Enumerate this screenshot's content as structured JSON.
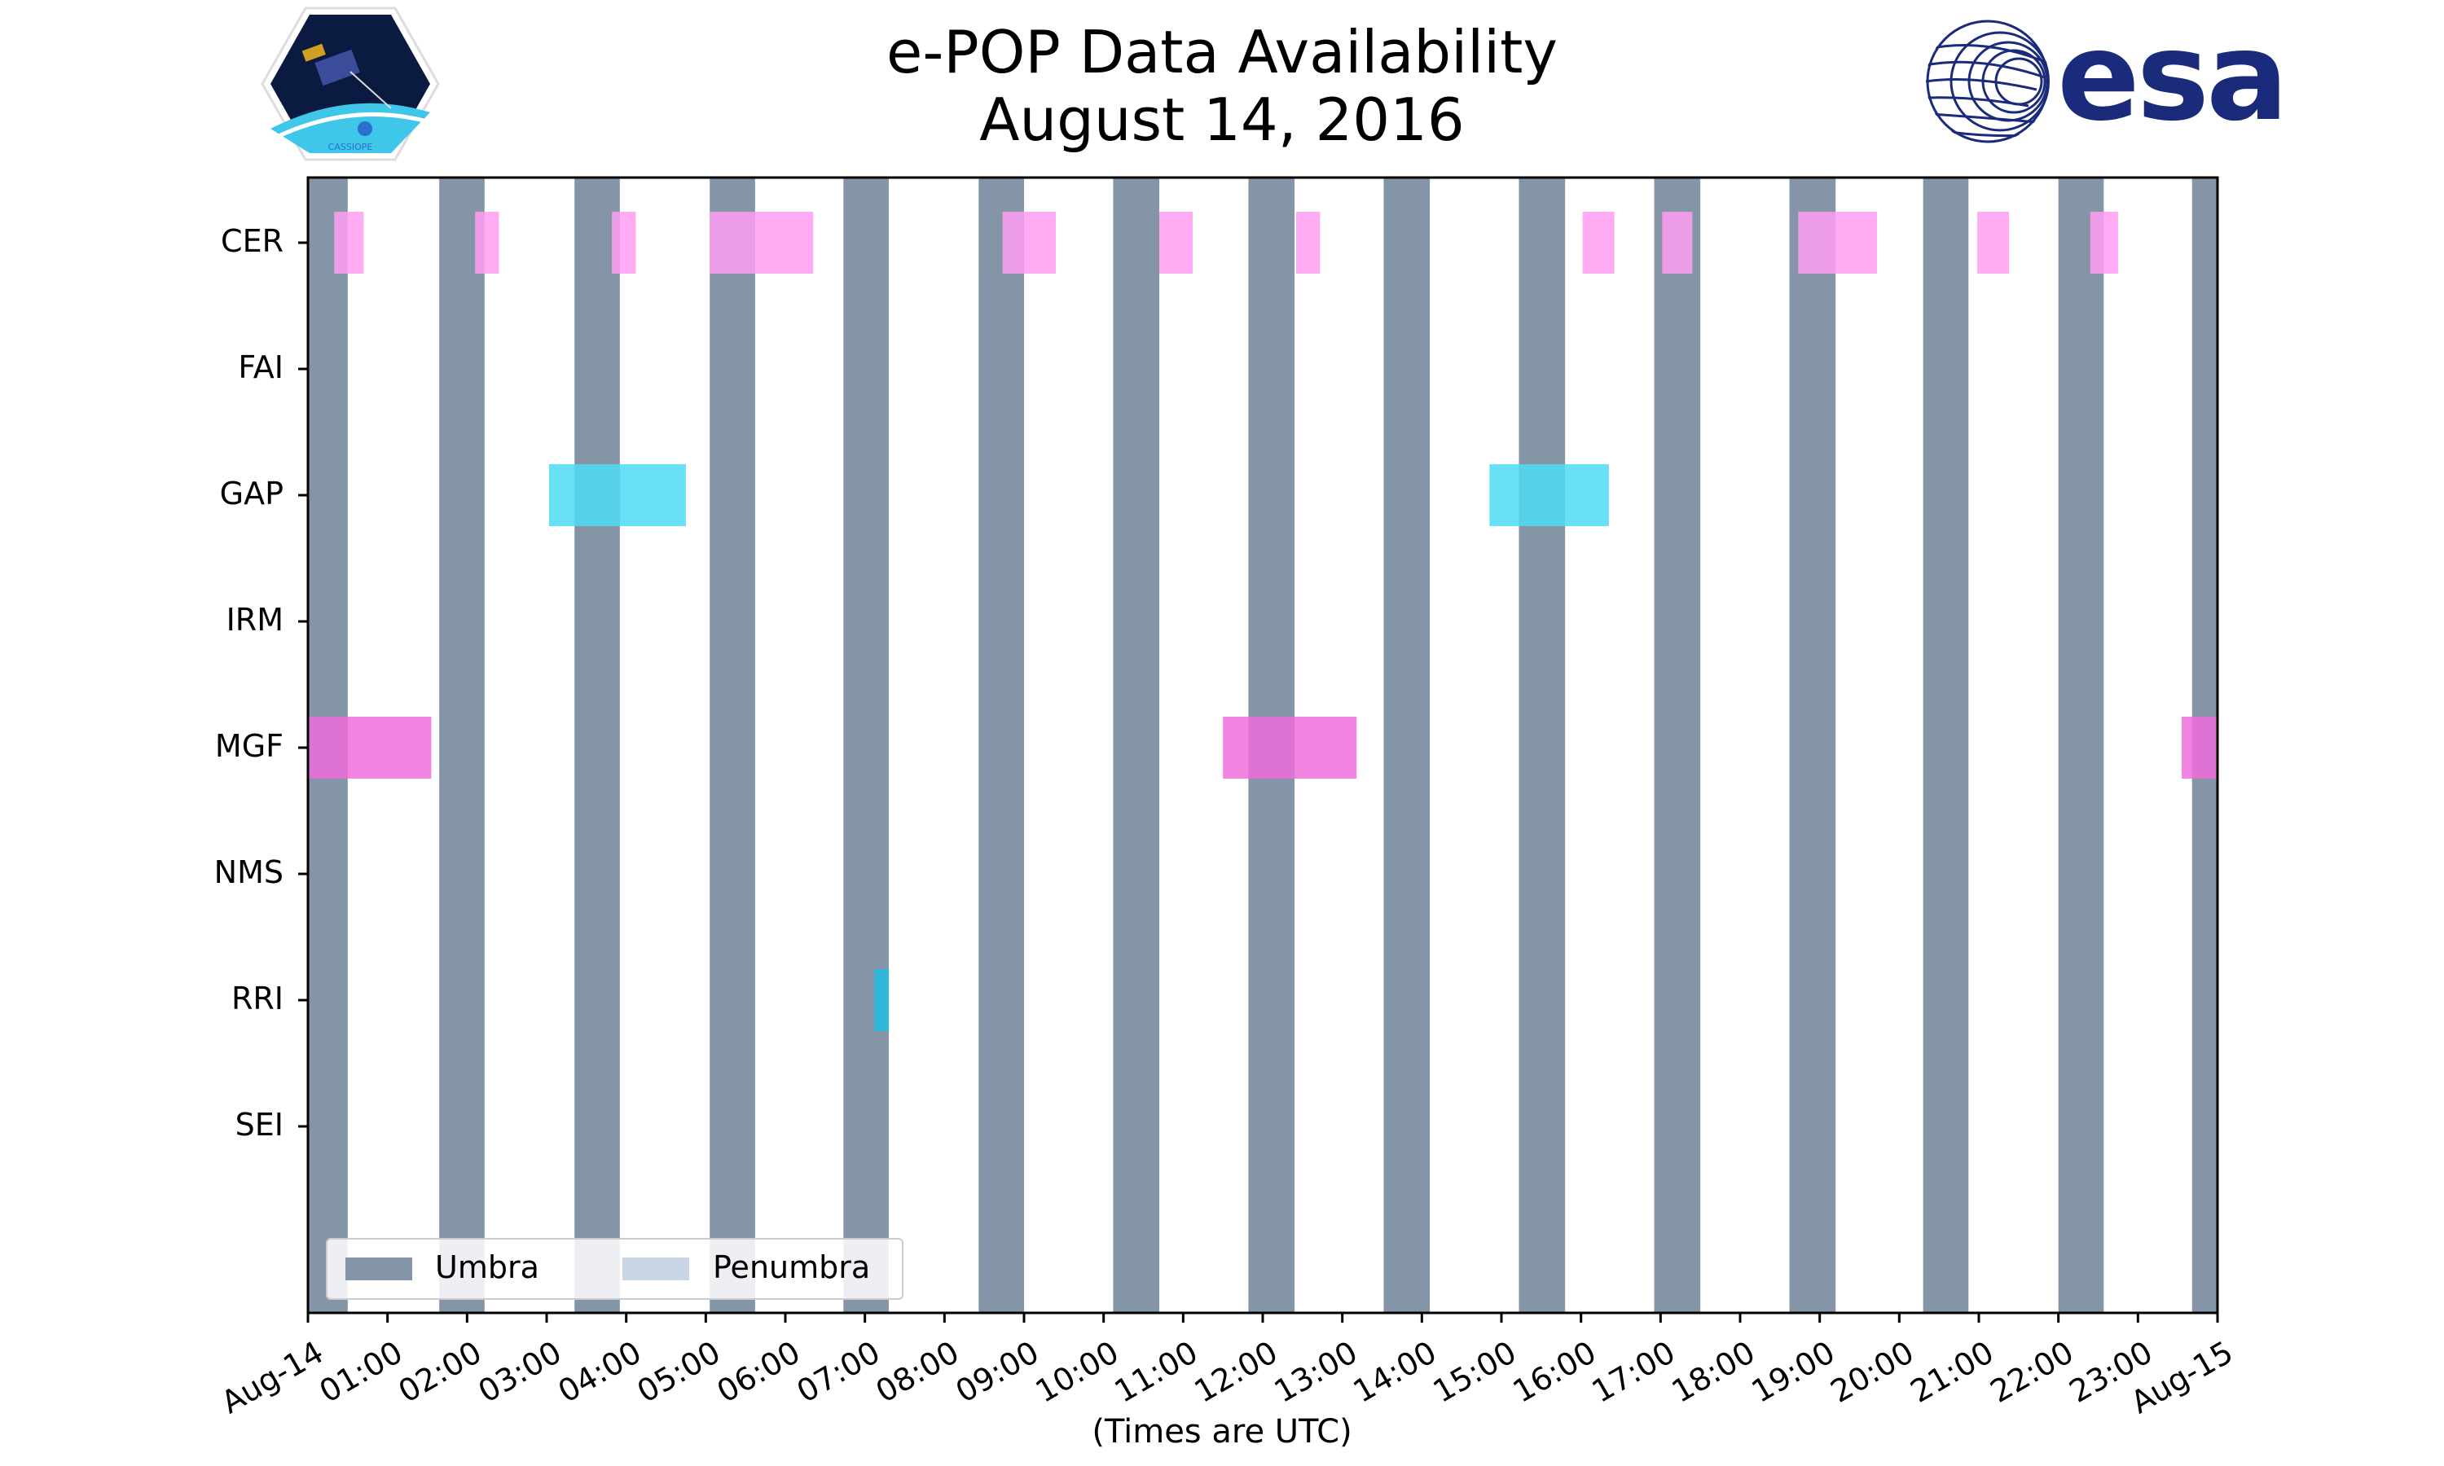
{
  "chart_data": {
    "type": "timeline",
    "title": [
      "e-POP Data Availability",
      "August 14, 2016"
    ],
    "xlabel": "(Times are UTC)",
    "ylabel": "",
    "x_unit": "hours UTC",
    "xlim": [
      0,
      24
    ],
    "xtick_labels": [
      "Aug-14",
      "01:00",
      "02:00",
      "03:00",
      "04:00",
      "05:00",
      "06:00",
      "07:00",
      "08:00",
      "09:00",
      "10:00",
      "11:00",
      "12:00",
      "13:00",
      "14:00",
      "15:00",
      "16:00",
      "17:00",
      "18:00",
      "19:00",
      "20:00",
      "21:00",
      "22:00",
      "23:00",
      "Aug-15"
    ],
    "instruments": [
      "CER",
      "FAI",
      "GAP",
      "IRM",
      "MGF",
      "NMS",
      "RRI",
      "SEI"
    ],
    "umbra_intervals": [
      [
        0.0,
        0.5
      ],
      [
        1.65,
        2.22
      ],
      [
        3.35,
        3.92
      ],
      [
        5.05,
        5.62
      ],
      [
        6.73,
        7.3
      ],
      [
        8.43,
        9.0
      ],
      [
        10.12,
        10.7
      ],
      [
        11.82,
        12.4
      ],
      [
        13.52,
        14.1
      ],
      [
        15.22,
        15.8
      ],
      [
        16.92,
        17.5
      ],
      [
        18.62,
        19.2
      ],
      [
        20.3,
        20.87
      ],
      [
        22.0,
        22.57
      ],
      [
        23.68,
        24.0
      ]
    ],
    "penumbra_intervals": [],
    "series": [
      {
        "name": "CER",
        "color": "#ff9ef2",
        "intervals": [
          [
            0.33,
            0.7
          ],
          [
            2.1,
            2.4
          ],
          [
            3.82,
            4.12
          ],
          [
            5.05,
            6.35
          ],
          [
            8.73,
            9.4
          ],
          [
            10.7,
            11.12
          ],
          [
            12.42,
            12.72
          ],
          [
            16.02,
            16.42
          ],
          [
            17.02,
            17.4
          ],
          [
            18.73,
            19.72
          ],
          [
            20.98,
            21.38
          ],
          [
            22.4,
            22.75
          ]
        ]
      },
      {
        "name": "FAI",
        "color": "#ff9ef2",
        "intervals": []
      },
      {
        "name": "GAP",
        "color": "#4ddcf5",
        "intervals": [
          [
            3.03,
            4.75
          ],
          [
            14.85,
            16.35
          ]
        ]
      },
      {
        "name": "IRM",
        "color": "#ff9ef2",
        "intervals": []
      },
      {
        "name": "MGF",
        "color": "#ee6ddc",
        "intervals": [
          [
            0.0,
            1.55
          ],
          [
            11.5,
            13.18
          ],
          [
            23.55,
            24.0
          ]
        ]
      },
      {
        "name": "NMS",
        "color": "#ff9ef2",
        "intervals": []
      },
      {
        "name": "RRI",
        "color": "#1fbfe0",
        "intervals": [
          [
            7.12,
            7.3
          ]
        ]
      },
      {
        "name": "SEI",
        "color": "#ff9ef2",
        "intervals": []
      }
    ],
    "legend": {
      "location": "lower-left",
      "entries": [
        {
          "label": "Umbra",
          "color": "#8495a8"
        },
        {
          "label": "Penumbra",
          "color": "#c8d6e6"
        }
      ]
    },
    "grid": false
  },
  "logos": {
    "left": {
      "caption": "CASSIOPE"
    },
    "right": {
      "text": "esa",
      "color": "#1a2b7c"
    }
  }
}
